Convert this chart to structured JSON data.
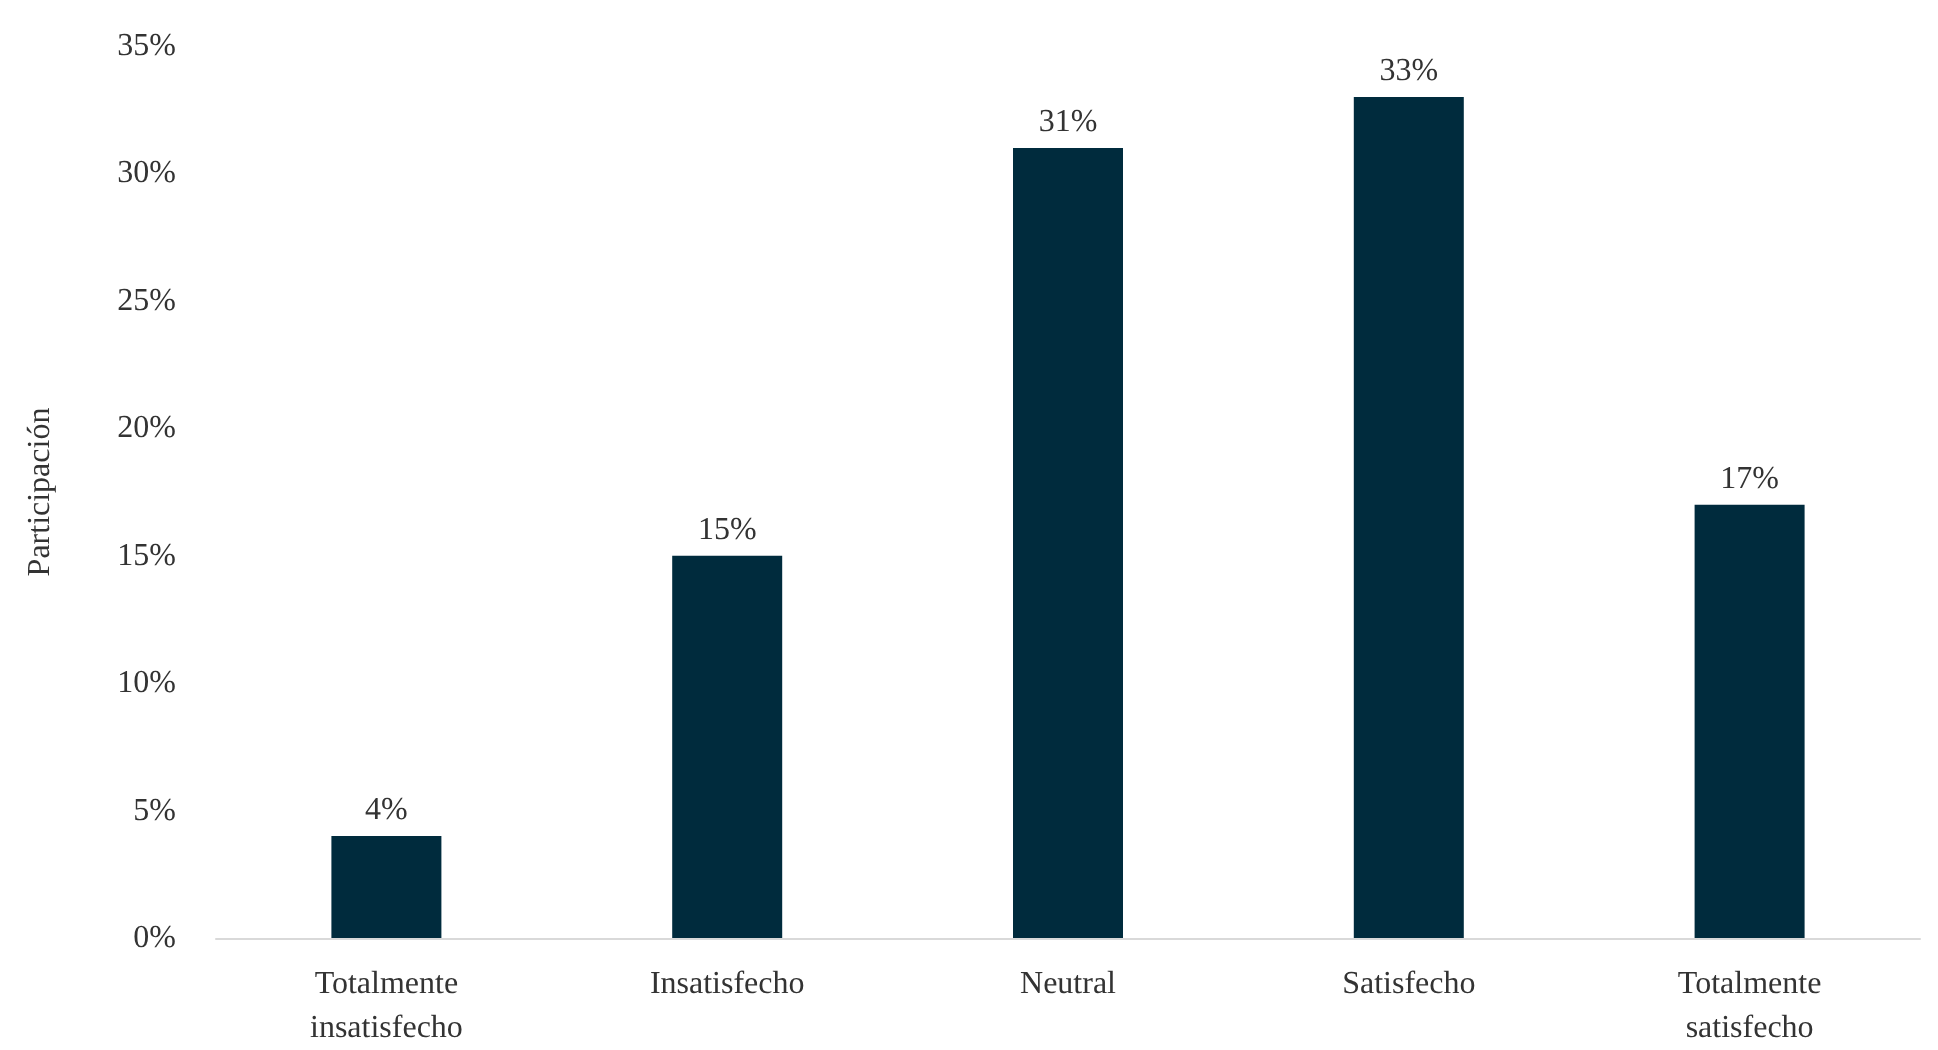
{
  "chart_data": {
    "type": "bar",
    "ylabel": "Participación",
    "categories": [
      "Totalmente\ninsatisfecho",
      "Insatisfecho",
      "Neutral",
      "Satisfecho",
      "Totalmente\nsatisfecho"
    ],
    "values": [
      4,
      15,
      31,
      33,
      17
    ],
    "value_labels": [
      "4%",
      "15%",
      "31%",
      "33%",
      "17%"
    ],
    "color": "#002b3d",
    "ylim": [
      0,
      35
    ],
    "yticks": [
      {
        "value": 0,
        "label": "0%"
      },
      {
        "value": 5,
        "label": "5%"
      },
      {
        "value": 10,
        "label": "10%"
      },
      {
        "value": 15,
        "label": "15%"
      },
      {
        "value": 20,
        "label": "20%"
      },
      {
        "value": 25,
        "label": "25%"
      },
      {
        "value": 30,
        "label": "30%"
      },
      {
        "value": 35,
        "label": "35%"
      }
    ],
    "grid": false
  }
}
